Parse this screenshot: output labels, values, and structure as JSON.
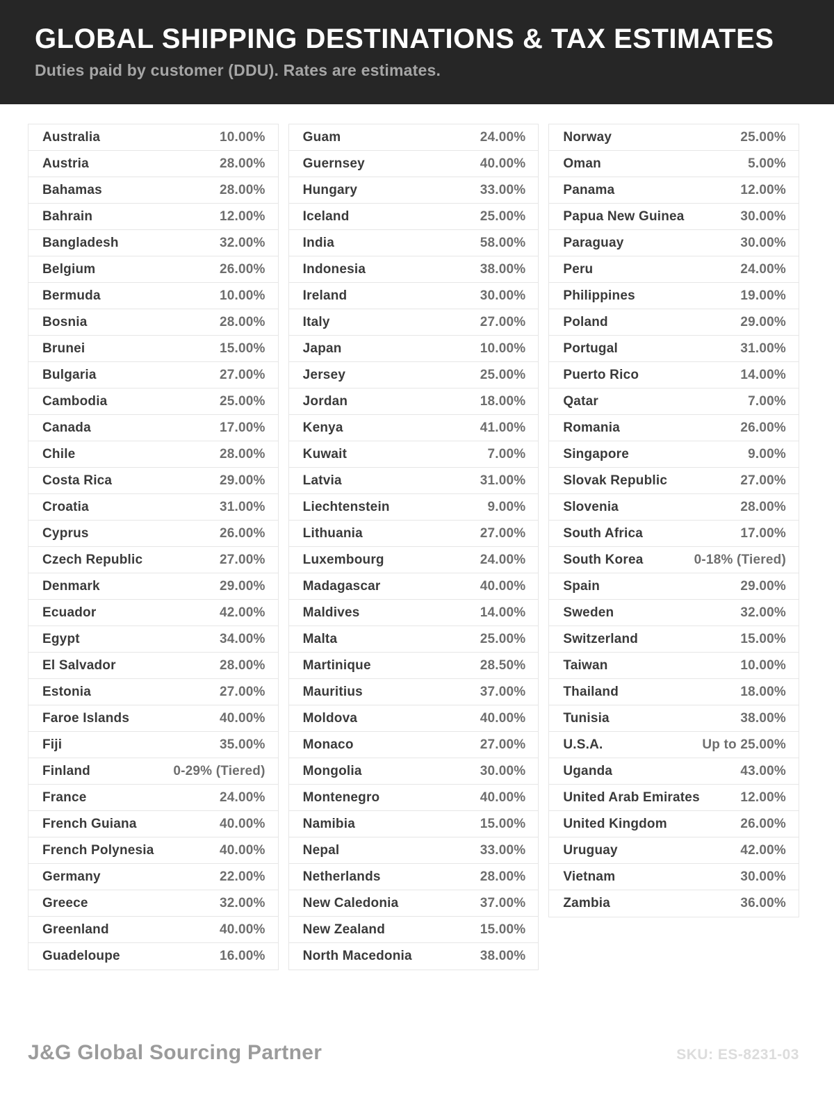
{
  "header": {
    "title": "GLOBAL SHIPPING DESTINATIONS & TAX ESTIMATES",
    "subtitle": "Duties paid by customer (DDU). Rates are estimates."
  },
  "colors": {
    "header_bg": "#262626",
    "title_text": "#ffffff",
    "subtitle_text": "#a6a6a6",
    "country_text": "#3a3a3a",
    "rate_text": "#6e6e6e",
    "cell_border": "#e6e6e6",
    "brand_text": "#9b9b9b",
    "sku_text": "#dcdcdc"
  },
  "table": {
    "columns": [
      {
        "rows": [
          {
            "country": "Australia",
            "rate": "10.00%"
          },
          {
            "country": "Austria",
            "rate": "28.00%"
          },
          {
            "country": "Bahamas",
            "rate": "28.00%"
          },
          {
            "country": "Bahrain",
            "rate": "12.00%"
          },
          {
            "country": "Bangladesh",
            "rate": "32.00%"
          },
          {
            "country": "Belgium",
            "rate": "26.00%"
          },
          {
            "country": "Bermuda",
            "rate": "10.00%"
          },
          {
            "country": "Bosnia",
            "rate": "28.00%"
          },
          {
            "country": "Brunei",
            "rate": "15.00%"
          },
          {
            "country": "Bulgaria",
            "rate": "27.00%"
          },
          {
            "country": "Cambodia",
            "rate": "25.00%"
          },
          {
            "country": "Canada",
            "rate": "17.00%"
          },
          {
            "country": "Chile",
            "rate": "28.00%"
          },
          {
            "country": "Costa Rica",
            "rate": "29.00%"
          },
          {
            "country": "Croatia",
            "rate": "31.00%"
          },
          {
            "country": "Cyprus",
            "rate": "26.00%"
          },
          {
            "country": "Czech Republic",
            "rate": "27.00%"
          },
          {
            "country": "Denmark",
            "rate": "29.00%"
          },
          {
            "country": "Ecuador",
            "rate": "42.00%"
          },
          {
            "country": "Egypt",
            "rate": "34.00%"
          },
          {
            "country": "El Salvador",
            "rate": "28.00%"
          },
          {
            "country": "Estonia",
            "rate": "27.00%"
          },
          {
            "country": "Faroe Islands",
            "rate": "40.00%"
          },
          {
            "country": "Fiji",
            "rate": "35.00%"
          },
          {
            "country": "Finland",
            "rate": "0-29% (Tiered)"
          },
          {
            "country": "France",
            "rate": "24.00%"
          },
          {
            "country": "French Guiana",
            "rate": "40.00%"
          },
          {
            "country": "French Polynesia",
            "rate": "40.00%"
          },
          {
            "country": "Germany",
            "rate": "22.00%"
          },
          {
            "country": "Greece",
            "rate": "32.00%"
          },
          {
            "country": "Greenland",
            "rate": "40.00%"
          },
          {
            "country": "Guadeloupe",
            "rate": "16.00%"
          }
        ]
      },
      {
        "rows": [
          {
            "country": "Guam",
            "rate": "24.00%"
          },
          {
            "country": "Guernsey",
            "rate": "40.00%"
          },
          {
            "country": "Hungary",
            "rate": "33.00%"
          },
          {
            "country": "Iceland",
            "rate": "25.00%"
          },
          {
            "country": "India",
            "rate": "58.00%"
          },
          {
            "country": "Indonesia",
            "rate": "38.00%"
          },
          {
            "country": "Ireland",
            "rate": "30.00%"
          },
          {
            "country": "Italy",
            "rate": "27.00%"
          },
          {
            "country": "Japan",
            "rate": "10.00%"
          },
          {
            "country": "Jersey",
            "rate": "25.00%"
          },
          {
            "country": "Jordan",
            "rate": "18.00%"
          },
          {
            "country": "Kenya",
            "rate": "41.00%"
          },
          {
            "country": "Kuwait",
            "rate": "7.00%"
          },
          {
            "country": "Latvia",
            "rate": "31.00%"
          },
          {
            "country": "Liechtenstein",
            "rate": "9.00%"
          },
          {
            "country": "Lithuania",
            "rate": "27.00%"
          },
          {
            "country": "Luxembourg",
            "rate": "24.00%"
          },
          {
            "country": "Madagascar",
            "rate": "40.00%"
          },
          {
            "country": "Maldives",
            "rate": "14.00%"
          },
          {
            "country": "Malta",
            "rate": "25.00%"
          },
          {
            "country": "Martinique",
            "rate": "28.50%"
          },
          {
            "country": "Mauritius",
            "rate": "37.00%"
          },
          {
            "country": "Moldova",
            "rate": "40.00%"
          },
          {
            "country": "Monaco",
            "rate": "27.00%"
          },
          {
            "country": "Mongolia",
            "rate": "30.00%"
          },
          {
            "country": "Montenegro",
            "rate": "40.00%"
          },
          {
            "country": "Namibia",
            "rate": "15.00%"
          },
          {
            "country": "Nepal",
            "rate": "33.00%"
          },
          {
            "country": "Netherlands",
            "rate": "28.00%"
          },
          {
            "country": "New Caledonia",
            "rate": "37.00%"
          },
          {
            "country": "New Zealand",
            "rate": "15.00%"
          },
          {
            "country": "North Macedonia",
            "rate": "38.00%"
          }
        ]
      },
      {
        "rows": [
          {
            "country": "Norway",
            "rate": "25.00%"
          },
          {
            "country": "Oman",
            "rate": "5.00%"
          },
          {
            "country": "Panama",
            "rate": "12.00%"
          },
          {
            "country": "Papua New Guinea",
            "rate": "30.00%"
          },
          {
            "country": "Paraguay",
            "rate": "30.00%"
          },
          {
            "country": "Peru",
            "rate": "24.00%"
          },
          {
            "country": "Philippines",
            "rate": "19.00%"
          },
          {
            "country": "Poland",
            "rate": "29.00%"
          },
          {
            "country": "Portugal",
            "rate": "31.00%"
          },
          {
            "country": "Puerto Rico",
            "rate": "14.00%"
          },
          {
            "country": "Qatar",
            "rate": "7.00%"
          },
          {
            "country": "Romania",
            "rate": "26.00%"
          },
          {
            "country": "Singapore",
            "rate": "9.00%"
          },
          {
            "country": "Slovak Republic",
            "rate": "27.00%"
          },
          {
            "country": "Slovenia",
            "rate": "28.00%"
          },
          {
            "country": "South Africa",
            "rate": "17.00%"
          },
          {
            "country": "South Korea",
            "rate": "0-18% (Tiered)"
          },
          {
            "country": "Spain",
            "rate": "29.00%"
          },
          {
            "country": "Sweden",
            "rate": "32.00%"
          },
          {
            "country": "Switzerland",
            "rate": "15.00%"
          },
          {
            "country": "Taiwan",
            "rate": "10.00%"
          },
          {
            "country": "Thailand",
            "rate": "18.00%"
          },
          {
            "country": "Tunisia",
            "rate": "38.00%"
          },
          {
            "country": "U.S.A.",
            "rate": "Up to 25.00%"
          },
          {
            "country": "Uganda",
            "rate": "43.00%"
          },
          {
            "country": "United Arab Emirates",
            "rate": "12.00%"
          },
          {
            "country": "United Kingdom",
            "rate": "26.00%"
          },
          {
            "country": "Uruguay",
            "rate": "42.00%"
          },
          {
            "country": "Vietnam",
            "rate": "30.00%"
          },
          {
            "country": "Zambia",
            "rate": "36.00%"
          }
        ]
      }
    ]
  },
  "footer": {
    "brand": "J&G Global Sourcing Partner",
    "sku": "SKU: ES-8231-03"
  }
}
